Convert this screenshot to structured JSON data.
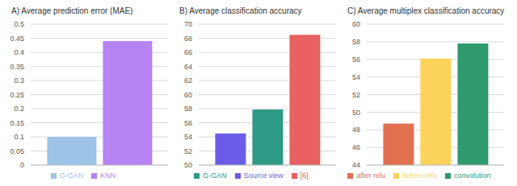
{
  "chart_data": [
    {
      "type": "bar",
      "title": "A) Average prediction error (MAE)",
      "grid": true,
      "legend": "bottom",
      "tick_labels": "y",
      "ylim": [
        0,
        0.5
      ],
      "yticks": [
        0,
        0.05,
        0.1,
        0.15,
        0.2,
        0.25,
        0.3,
        0.35,
        0.4,
        0.45,
        0.5
      ],
      "series": [
        {
          "name": "G-GAN",
          "color": "#9dc3e6",
          "values": [
            0.1
          ]
        },
        {
          "name": "KNN",
          "color": "#b583f2",
          "values": [
            0.44
          ]
        }
      ]
    },
    {
      "type": "bar",
      "title": "B) Average classification accuracy",
      "grid": true,
      "legend": "bottom",
      "tick_labels": "y",
      "ylim": [
        50,
        70
      ],
      "yticks": [
        50,
        52,
        54,
        56,
        58,
        60,
        62,
        64,
        66,
        68,
        70
      ],
      "series": [
        {
          "name": "Source view",
          "color": "#6b5de8",
          "values": [
            54.5
          ]
        },
        {
          "name": "G-GAN",
          "color": "#2e9a86",
          "values": [
            57.9
          ]
        },
        {
          "name": "[6]",
          "color": "#e8605f",
          "values": [
            68.5
          ]
        }
      ]
    },
    {
      "type": "bar",
      "title": "C) Average multiplex classification accuracy",
      "grid": true,
      "legend": "bottom",
      "tick_labels": "y",
      "ylim": [
        44,
        60
      ],
      "yticks": [
        44,
        46,
        48,
        50,
        52,
        54,
        56,
        58,
        60
      ],
      "series": [
        {
          "name": "after relu",
          "color": "#e0704f",
          "values": [
            48.7
          ]
        },
        {
          "name": "before relu",
          "color": "#fcd35a",
          "values": [
            56.1
          ]
        },
        {
          "name": "convolution",
          "color": "#2e9a6e",
          "values": [
            57.8
          ]
        }
      ]
    }
  ]
}
